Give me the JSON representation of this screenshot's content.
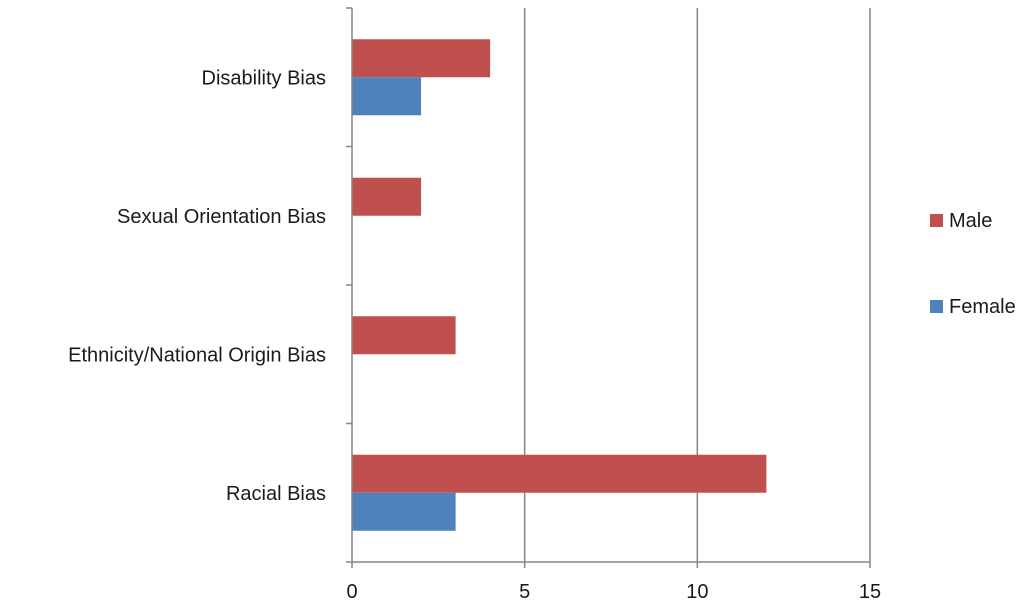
{
  "chart_data": {
    "type": "bar",
    "orientation": "horizontal",
    "categories": [
      "Racial Bias",
      "Ethnicity/National Origin Bias",
      "Sexual Orientation Bias",
      "Disability Bias"
    ],
    "series": [
      {
        "name": "Female",
        "values": [
          3,
          0,
          0,
          2
        ],
        "color": "#4F81BD"
      },
      {
        "name": "Male",
        "values": [
          12,
          3,
          2,
          4
        ],
        "color": "#C0504D"
      }
    ],
    "title": "",
    "xlabel": "",
    "ylabel": "",
    "xlim": [
      0,
      15
    ],
    "xticks": [
      0,
      5,
      10,
      15
    ],
    "grid": "vertical",
    "legend_position": "right"
  }
}
